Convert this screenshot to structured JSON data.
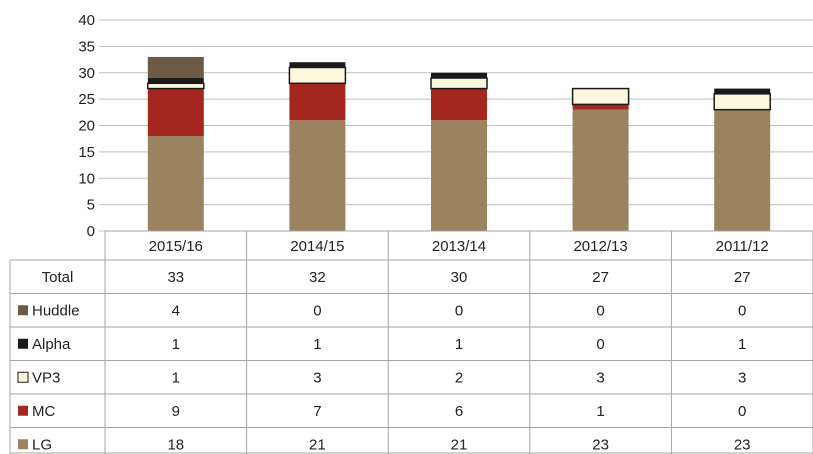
{
  "chart_data": {
    "type": "bar",
    "stacked": true,
    "categories": [
      "2015/16",
      "2014/15",
      "2013/14",
      "2012/13",
      "2011/12"
    ],
    "ylim": [
      0,
      40
    ],
    "yticks": [
      0,
      5,
      10,
      15,
      20,
      25,
      30,
      35,
      40
    ],
    "grid": true,
    "legend": "data-table-left",
    "series": [
      {
        "name": "LG",
        "color": "#9c8360",
        "values": [
          18,
          21,
          21,
          23,
          23
        ]
      },
      {
        "name": "MC",
        "color": "#a3261f",
        "values": [
          9,
          7,
          6,
          1,
          0
        ]
      },
      {
        "name": "VP3",
        "color": "#fdf8dc",
        "values": [
          1,
          3,
          2,
          3,
          3
        ]
      },
      {
        "name": "Alpha",
        "color": "#1a1a1a",
        "values": [
          1,
          1,
          1,
          0,
          1
        ]
      },
      {
        "name": "Huddle",
        "color": "#6e5b45",
        "values": [
          4,
          0,
          0,
          0,
          0
        ]
      }
    ],
    "table": {
      "total_label": "Total",
      "totals": [
        33,
        32,
        30,
        27,
        27
      ],
      "row_order": [
        "Huddle",
        "Alpha",
        "VP3",
        "MC",
        "LG"
      ]
    }
  }
}
